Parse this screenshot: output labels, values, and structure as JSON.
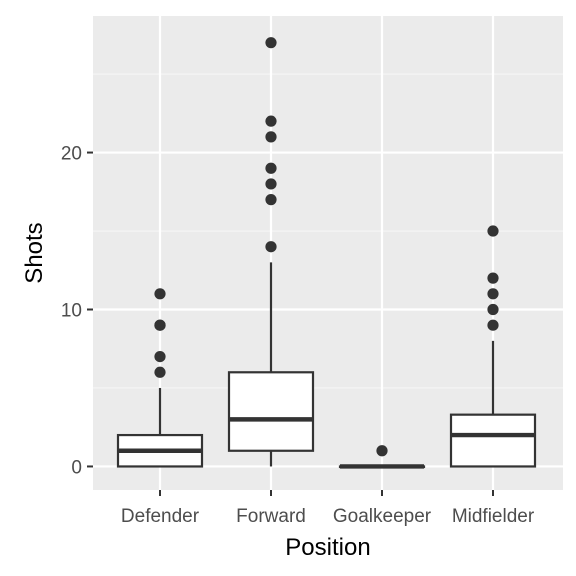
{
  "chart_data": {
    "type": "boxplot",
    "xlabel": "Position",
    "ylabel": "Shots",
    "categories": [
      "Defender",
      "Forward",
      "Goalkeeper",
      "Midfielder"
    ],
    "ylim": [
      -1.5,
      28.7
    ],
    "yticks": [
      0,
      10,
      20
    ],
    "grid": true,
    "legend": "none",
    "boxes": [
      {
        "category": "Defender",
        "whisker_low": 0,
        "q1": 0,
        "median": 1,
        "q3": 2,
        "whisker_high": 5,
        "outliers": [
          6,
          7,
          9,
          9,
          11
        ]
      },
      {
        "category": "Forward",
        "whisker_low": 0,
        "q1": 1,
        "median": 3,
        "q3": 6,
        "whisker_high": 13,
        "outliers": [
          14,
          17,
          18,
          19,
          21,
          22,
          27
        ]
      },
      {
        "category": "Goalkeeper",
        "whisker_low": 0,
        "q1": 0,
        "median": 0,
        "q3": 0,
        "whisker_high": 0,
        "outliers": [
          1
        ]
      },
      {
        "category": "Midfielder",
        "whisker_low": 0,
        "q1": 0,
        "median": 2,
        "q3": 3.3,
        "whisker_high": 8,
        "outliers": [
          9,
          10,
          11,
          12,
          15
        ]
      }
    ],
    "colors": {
      "panel": "#ebebeb",
      "grid_major": "#ffffff",
      "box_fill": "#ffffff",
      "box_line": "#333333",
      "tick_text": "#4d4d4d"
    }
  }
}
